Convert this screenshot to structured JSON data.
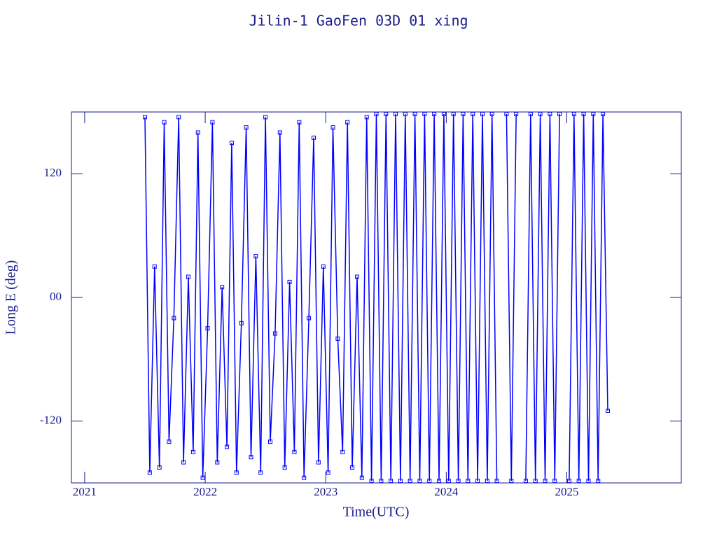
{
  "chart_data": {
    "type": "line",
    "title": "Jilin-1 GaoFen 03D 01 xing",
    "x_label": "Time(UTC)",
    "y_label": "Long E (deg)",
    "xlim": [
      2020.89,
      2025.95
    ],
    "xticks": [
      2021,
      2022,
      2023,
      2024,
      2025
    ],
    "ylim": [
      -180,
      180
    ],
    "yticks": [
      -120,
      {
        "value": 0,
        "label": "00"
      },
      120
    ],
    "x": [
      2021.5,
      2021.54,
      2021.58,
      2021.62,
      2021.66,
      2021.7,
      2021.74,
      2021.78,
      2021.82,
      2021.86,
      2021.9,
      2021.94,
      2021.98,
      2022.02,
      2022.06,
      2022.1,
      2022.14,
      2022.18,
      2022.22,
      2022.26,
      2022.3,
      2022.34,
      2022.38,
      2022.42,
      2022.46,
      2022.5,
      2022.54,
      2022.58,
      2022.62,
      2022.66,
      2022.7,
      2022.74,
      2022.78,
      2022.82,
      2022.86,
      2022.9,
      2022.94,
      2022.98,
      2023.02,
      2023.06,
      2023.1,
      2023.14,
      2023.18,
      2023.22,
      2023.26,
      2023.3,
      2023.34,
      2023.38,
      2023.42,
      2023.46,
      2023.5,
      2023.54,
      2023.58,
      2023.62,
      2023.66,
      2023.7,
      2023.74,
      2023.78,
      2023.82,
      2023.86,
      2023.9,
      2023.94,
      2023.98,
      2024.02,
      2024.06,
      2024.1,
      2024.14,
      2024.18,
      2024.22,
      2024.26,
      2024.3,
      2024.34,
      2024.38,
      2024.42,
      2024.46,
      2024.5,
      2024.54,
      2024.58,
      2024.62,
      2024.66,
      2024.7,
      2024.74,
      2024.78,
      2024.82,
      2024.86,
      2024.9,
      2024.94,
      2024.98,
      2025.02,
      2025.06,
      2025.1,
      2025.14,
      2025.18,
      2025.22,
      2025.26,
      2025.3,
      2025.34
    ],
    "series": [
      {
        "color": "#0000ff",
        "values": [
          175,
          -170,
          30,
          -165,
          170,
          -140,
          -20,
          175,
          -160,
          20,
          -150,
          160,
          -175,
          -30,
          170,
          -160,
          10,
          -145,
          150,
          -170,
          -25,
          165,
          -155,
          40,
          -170,
          175,
          -140,
          -35,
          160,
          -165,
          15,
          -150,
          170,
          -175,
          -20,
          155,
          -160,
          30,
          -170,
          165,
          -40,
          -150,
          170,
          -165,
          20,
          -175,
          175,
          -178,
          178,
          -178,
          178,
          -178,
          178,
          -178,
          178,
          -178,
          178,
          -178,
          178,
          -178,
          178,
          -178,
          178,
          -178,
          178,
          -178,
          178,
          -178,
          178,
          -178,
          178,
          -178,
          178,
          -178,
          null,
          178,
          -178,
          178,
          null,
          -178,
          178,
          -178,
          178,
          -178,
          178,
          -178,
          178,
          null,
          -178,
          178,
          -178,
          178,
          -178,
          178,
          -178,
          178,
          -110
        ]
      }
    ],
    "grid": false
  }
}
